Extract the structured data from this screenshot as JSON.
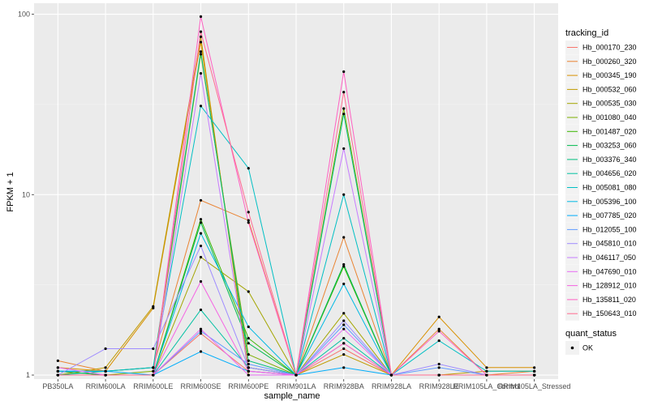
{
  "chart_data": {
    "type": "line",
    "xlabel": "sample_name",
    "ylabel": "FPKM + 1",
    "y_scale": "log10",
    "ylim": [
      0.95,
      115
    ],
    "y_ticks": [
      1,
      10,
      100
    ],
    "grid": true,
    "background": "#EBEBEB",
    "categories": [
      "PB350LA",
      "RRIM600LA",
      "RRIM600LE",
      "RRIM600SE",
      "RRIM600PE",
      "RRIM901LA",
      "RRIM928BA",
      "RRIM928LA",
      "RRIM928LE",
      "RRIM105LA_Control",
      "RRIM105LA_Stressed"
    ],
    "legend_position": "right",
    "legend_tracking_title": "tracking_id",
    "legend_quant_title": "quant_status",
    "legend_quant_label": "OK",
    "series": [
      {
        "name": "Hb_000170_230",
        "color": "#F8766D",
        "values": [
          1.05,
          1.0,
          1.0,
          1.7,
          1.05,
          1.0,
          1.4,
          1.0,
          1.0,
          1.0,
          1.0
        ]
      },
      {
        "name": "Hb_000260_320",
        "color": "#EA8331",
        "values": [
          1.2,
          1.05,
          1.1,
          9.3,
          7.2,
          1.0,
          5.8,
          1.0,
          1.8,
          1.0,
          1.05
        ]
      },
      {
        "name": "Hb_000345_190",
        "color": "#D89000",
        "values": [
          1.1,
          1.05,
          2.35,
          70.0,
          1.1,
          1.0,
          1.5,
          1.0,
          2.1,
          1.1,
          1.1
        ]
      },
      {
        "name": "Hb_000532_060",
        "color": "#C09B00",
        "values": [
          1.0,
          1.1,
          2.4,
          75.0,
          1.0,
          1.0,
          1.3,
          1.0,
          1.0,
          1.05,
          1.05
        ]
      },
      {
        "name": "Hb_000535_030",
        "color": "#A3A500",
        "values": [
          1.05,
          1.0,
          1.0,
          4.5,
          2.9,
          1.0,
          2.2,
          1.0,
          1.0,
          1.0,
          1.0
        ]
      },
      {
        "name": "Hb_001080_040",
        "color": "#7CAE00",
        "values": [
          1.0,
          1.0,
          1.05,
          60.0,
          1.3,
          1.0,
          30.0,
          1.0,
          1.0,
          1.0,
          1.0
        ]
      },
      {
        "name": "Hb_001487_020",
        "color": "#39B600",
        "values": [
          1.0,
          1.0,
          1.0,
          7.3,
          1.6,
          1.0,
          4.0,
          1.0,
          1.0,
          1.0,
          1.0
        ]
      },
      {
        "name": "Hb_003253_060",
        "color": "#00BB4E",
        "values": [
          1.05,
          1.0,
          1.0,
          7.0,
          1.5,
          1.0,
          4.1,
          1.0,
          1.0,
          1.0,
          1.0
        ]
      },
      {
        "name": "Hb_003376_340",
        "color": "#00BF7D",
        "values": [
          1.0,
          1.05,
          1.1,
          62.0,
          1.2,
          1.0,
          28.0,
          1.0,
          1.0,
          1.0,
          1.0
        ]
      },
      {
        "name": "Hb_004656_020",
        "color": "#00C1A3",
        "values": [
          1.0,
          1.0,
          1.0,
          2.3,
          1.1,
          1.0,
          1.6,
          1.0,
          1.0,
          1.0,
          1.0
        ]
      },
      {
        "name": "Hb_005081_080",
        "color": "#00BFC4",
        "values": [
          1.05,
          1.05,
          1.1,
          31.0,
          14.0,
          1.0,
          10.0,
          1.0,
          1.55,
          1.05,
          1.05
        ]
      },
      {
        "name": "Hb_005396_100",
        "color": "#00B9E3",
        "values": [
          1.0,
          1.0,
          1.0,
          6.1,
          1.85,
          1.0,
          3.2,
          1.0,
          1.0,
          1.0,
          1.0
        ]
      },
      {
        "name": "Hb_007785_020",
        "color": "#00ADFA",
        "values": [
          1.05,
          1.05,
          1.0,
          1.35,
          1.05,
          1.0,
          1.1,
          1.0,
          1.0,
          1.0,
          1.0
        ]
      },
      {
        "name": "Hb_012055_100",
        "color": "#619CFF",
        "values": [
          1.0,
          1.0,
          1.0,
          1.75,
          1.15,
          1.0,
          1.9,
          1.0,
          1.1,
          1.0,
          1.0
        ]
      },
      {
        "name": "Hb_045810_010",
        "color": "#9F8CFF",
        "values": [
          1.0,
          1.4,
          1.4,
          5.2,
          1.1,
          1.0,
          2.0,
          1.0,
          1.15,
          1.0,
          1.0
        ]
      },
      {
        "name": "Hb_046117_050",
        "color": "#C77CFF",
        "values": [
          1.0,
          1.0,
          1.0,
          47.0,
          1.05,
          1.0,
          18.0,
          1.0,
          1.0,
          1.0,
          1.0
        ]
      },
      {
        "name": "Hb_047690_010",
        "color": "#E76BF3",
        "values": [
          1.1,
          1.0,
          1.0,
          1.8,
          1.0,
          1.0,
          1.8,
          1.0,
          1.0,
          1.0,
          1.0
        ]
      },
      {
        "name": "Hb_128912_010",
        "color": "#F564E3",
        "values": [
          1.0,
          1.0,
          1.0,
          3.3,
          1.05,
          1.0,
          1.5,
          1.0,
          1.0,
          1.0,
          1.0
        ]
      },
      {
        "name": "Hb_135811_020",
        "color": "#FF61C3",
        "values": [
          1.0,
          1.0,
          1.0,
          97.0,
          7.0,
          1.0,
          48.0,
          1.0,
          1.75,
          1.0,
          1.0
        ]
      },
      {
        "name": "Hb_150643_010",
        "color": "#FF6C91",
        "values": [
          1.0,
          1.0,
          1.0,
          80.0,
          8.0,
          1.0,
          37.0,
          1.0,
          1.0,
          1.0,
          1.0
        ]
      }
    ]
  }
}
